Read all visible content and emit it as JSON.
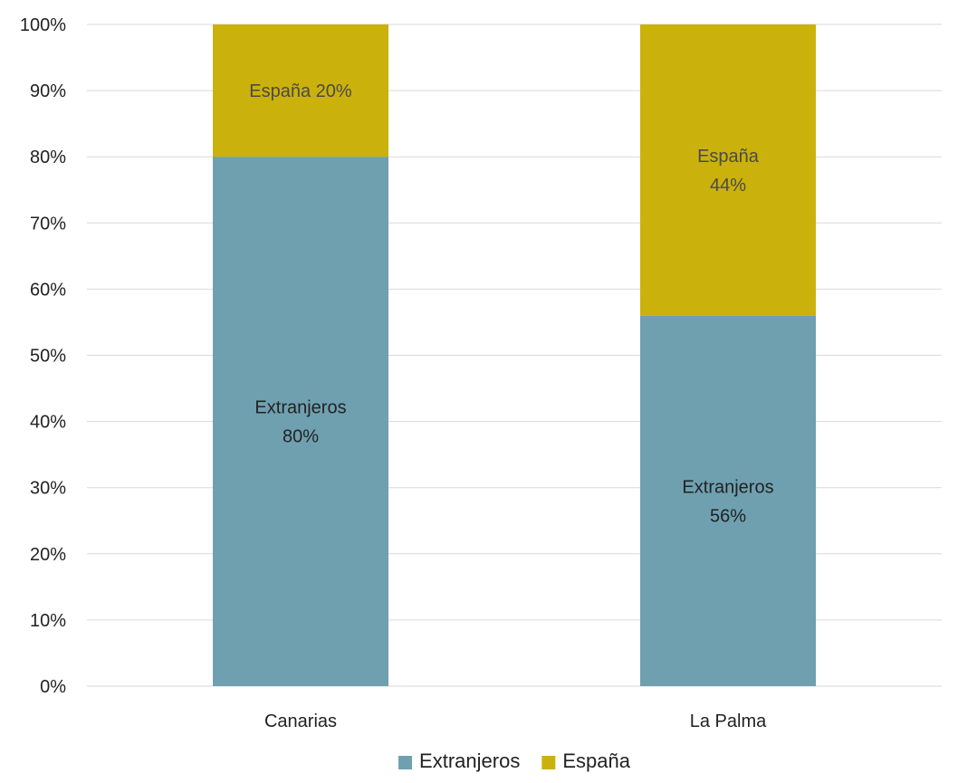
{
  "chart_data": {
    "type": "bar",
    "stacked": true,
    "percent": true,
    "categories": [
      "Canarias",
      "La Palma"
    ],
    "series": [
      {
        "name": "Extranjeros",
        "values": [
          80,
          56
        ],
        "labels": [
          "Extranjeros\n80%",
          "Extranjeros\n56%"
        ],
        "color": "#6fa0b0",
        "label_color": "#222222"
      },
      {
        "name": "España",
        "values": [
          20,
          44
        ],
        "labels": [
          "España 20%",
          "España\n44%"
        ],
        "color": "#cbb10c",
        "label_color": "#4a4a4a"
      }
    ],
    "ylim": [
      0,
      100
    ],
    "yticks": [
      "0%",
      "10%",
      "20%",
      "30%",
      "40%",
      "50%",
      "60%",
      "70%",
      "80%",
      "90%",
      "100%"
    ],
    "grid": true,
    "grid_color": "#d9d9d9",
    "legend_position": "bottom",
    "title": "",
    "xlabel": "",
    "ylabel": ""
  }
}
